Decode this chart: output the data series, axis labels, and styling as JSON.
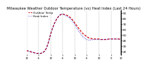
{
  "title": "Milwaukee Weather Outdoor Temperature (vs) Heat Index (Last 24 Hours)",
  "title_fontsize": 3.8,
  "background_color": "#ffffff",
  "grid_color": "#888888",
  "x_values": [
    0,
    1,
    2,
    3,
    4,
    5,
    6,
    7,
    8,
    9,
    10,
    11,
    12,
    13,
    14,
    15,
    16,
    17,
    18,
    19,
    20,
    21,
    22,
    23,
    24,
    25,
    26,
    27,
    28,
    29,
    30,
    31,
    32,
    33,
    34,
    35,
    36,
    37,
    38,
    39,
    40,
    41,
    42,
    43,
    44,
    45,
    46,
    47
  ],
  "temp_values": [
    22,
    21,
    20,
    19,
    18,
    17,
    17,
    17,
    18,
    21,
    27,
    38,
    52,
    63,
    72,
    79,
    84,
    87,
    88,
    87,
    86,
    84,
    81,
    77,
    72,
    67,
    62,
    57,
    53,
    50,
    47,
    45,
    44,
    43,
    43,
    43,
    43,
    42,
    42,
    42,
    42,
    43,
    43,
    43,
    43,
    43,
    43,
    43
  ],
  "heat_values": [
    22,
    21,
    20,
    19,
    18,
    17,
    17,
    17,
    18,
    21,
    27,
    38,
    52,
    63,
    72,
    79,
    84,
    88,
    88,
    86,
    84,
    82,
    79,
    74,
    69,
    63,
    57,
    52,
    47,
    44,
    42,
    41,
    41,
    42,
    42,
    42,
    42,
    42,
    42,
    42,
    42,
    43,
    43,
    43,
    43,
    43,
    42,
    42
  ],
  "temp_color": "#cc0000",
  "heat_color": "#0000cc",
  "ylim_min": 15,
  "ylim_max": 95,
  "ytick_values": [
    20,
    30,
    40,
    50,
    60,
    70,
    80,
    90
  ],
  "ytick_fontsize": 3.2,
  "xtick_fontsize": 2.8,
  "x_tick_positions": [
    0,
    6,
    12,
    18,
    24,
    30,
    36,
    42,
    47
  ],
  "x_labels": [
    "12",
    "6",
    "12",
    "6",
    "12",
    "6",
    "12",
    "6",
    "12"
  ],
  "grid_x_positions": [
    0,
    6,
    12,
    18,
    24,
    30,
    36,
    42,
    47
  ],
  "legend_temp_label": "Outdoor Temp",
  "legend_heat_label": "Heat Index",
  "legend_fontsize": 3.0
}
